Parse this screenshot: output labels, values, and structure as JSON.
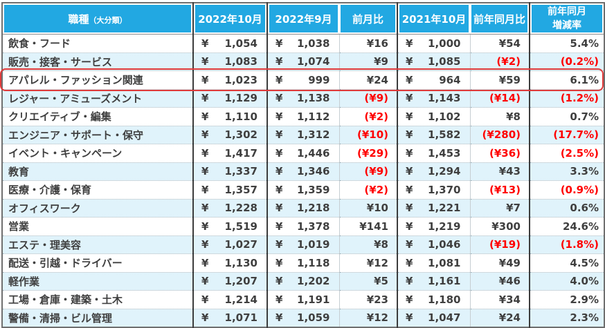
{
  "chart_data": {
    "type": "table",
    "currency": "¥",
    "header": {
      "category": "職種",
      "category_sub": "（大分類）",
      "col_oct2022": "2022年10月",
      "col_sep2022": "2022年9月",
      "col_mom": "前月比",
      "col_oct2021": "2021年10月",
      "col_yoy": "前年同月比",
      "col_rate_line1": "前年同月",
      "col_rate_line2": "増減率"
    },
    "columns": [
      "職種（大分類）",
      "2022年10月",
      "2022年9月",
      "前月比",
      "2021年10月",
      "前年同月比",
      "前年同月増減率"
    ],
    "rows": [
      {
        "category": "飲食・フード",
        "oct2022": "1,054",
        "sep2022": "1,038",
        "mom_diff": "¥16",
        "oct2021": "1,000",
        "yoy_diff": "¥54",
        "yoy_rate": "5.4%",
        "highlighted": false
      },
      {
        "category": "販売・接客・サービス",
        "oct2022": "1,083",
        "sep2022": "1,074",
        "mom_diff": "¥9",
        "oct2021": "1,085",
        "yoy_diff": "(¥2)",
        "yoy_rate": "(0.2%)",
        "highlighted": false
      },
      {
        "category": "アパレル・ファッション関連",
        "oct2022": "1,023",
        "sep2022": "999",
        "mom_diff": "¥24",
        "oct2021": "964",
        "yoy_diff": "¥59",
        "yoy_rate": "6.1%",
        "highlighted": true
      },
      {
        "category": "レジャー・アミューズメント",
        "oct2022": "1,129",
        "sep2022": "1,138",
        "mom_diff": "(¥9)",
        "oct2021": "1,143",
        "yoy_diff": "(¥14)",
        "yoy_rate": "(1.2%)",
        "highlighted": false
      },
      {
        "category": "クリエイティブ・編集",
        "oct2022": "1,110",
        "sep2022": "1,112",
        "mom_diff": "(¥2)",
        "oct2021": "1,102",
        "yoy_diff": "¥8",
        "yoy_rate": "0.7%",
        "highlighted": false
      },
      {
        "category": "エンジニア・サポート・保守",
        "oct2022": "1,302",
        "sep2022": "1,312",
        "mom_diff": "(¥10)",
        "oct2021": "1,582",
        "yoy_diff": "(¥280)",
        "yoy_rate": "(17.7%)",
        "highlighted": false
      },
      {
        "category": "イベント・キャンペーン",
        "oct2022": "1,417",
        "sep2022": "1,446",
        "mom_diff": "(¥29)",
        "oct2021": "1,453",
        "yoy_diff": "(¥36)",
        "yoy_rate": "(2.5%)",
        "highlighted": false
      },
      {
        "category": "教育",
        "oct2022": "1,337",
        "sep2022": "1,346",
        "mom_diff": "(¥9)",
        "oct2021": "1,294",
        "yoy_diff": "¥43",
        "yoy_rate": "3.3%",
        "highlighted": false
      },
      {
        "category": "医療・介護・保育",
        "oct2022": "1,357",
        "sep2022": "1,359",
        "mom_diff": "(¥2)",
        "oct2021": "1,370",
        "yoy_diff": "(¥13)",
        "yoy_rate": "(0.9%)",
        "highlighted": false
      },
      {
        "category": "オフィスワーク",
        "oct2022": "1,228",
        "sep2022": "1,218",
        "mom_diff": "¥10",
        "oct2021": "1,221",
        "yoy_diff": "¥7",
        "yoy_rate": "0.6%",
        "highlighted": false
      },
      {
        "category": "営業",
        "oct2022": "1,519",
        "sep2022": "1,378",
        "mom_diff": "¥141",
        "oct2021": "1,219",
        "yoy_diff": "¥300",
        "yoy_rate": "24.6%",
        "highlighted": false
      },
      {
        "category": "エステ・理美容",
        "oct2022": "1,027",
        "sep2022": "1,019",
        "mom_diff": "¥8",
        "oct2021": "1,046",
        "yoy_diff": "(¥19)",
        "yoy_rate": "(1.8%)",
        "highlighted": false
      },
      {
        "category": "配送・引越・ドライバー",
        "oct2022": "1,130",
        "sep2022": "1,118",
        "mom_diff": "¥12",
        "oct2021": "1,081",
        "yoy_diff": "¥49",
        "yoy_rate": "4.5%",
        "highlighted": false
      },
      {
        "category": "軽作業",
        "oct2022": "1,207",
        "sep2022": "1,202",
        "mom_diff": "¥5",
        "oct2021": "1,161",
        "yoy_diff": "¥46",
        "yoy_rate": "4.0%",
        "highlighted": false
      },
      {
        "category": "工場・倉庫・建築・土木",
        "oct2022": "1,214",
        "sep2022": "1,191",
        "mom_diff": "¥23",
        "oct2021": "1,180",
        "yoy_diff": "¥34",
        "yoy_rate": "2.9%",
        "highlighted": false
      },
      {
        "category": "警備・清掃・ビル管理",
        "oct2022": "1,071",
        "sep2022": "1,059",
        "mom_diff": "¥12",
        "oct2021": "1,047",
        "yoy_diff": "¥24",
        "yoy_rate": "2.3%",
        "highlighted": false
      }
    ],
    "notes": "negative values shown in red parentheses"
  },
  "colors": {
    "header_bg": "#22A8E2",
    "header_text": "#FFFFFF",
    "body_text": "#3F3F3F",
    "negative": "#FF0000",
    "alt_row_bg": "#E0F3FB",
    "highlight_border": "#E03A3A"
  }
}
